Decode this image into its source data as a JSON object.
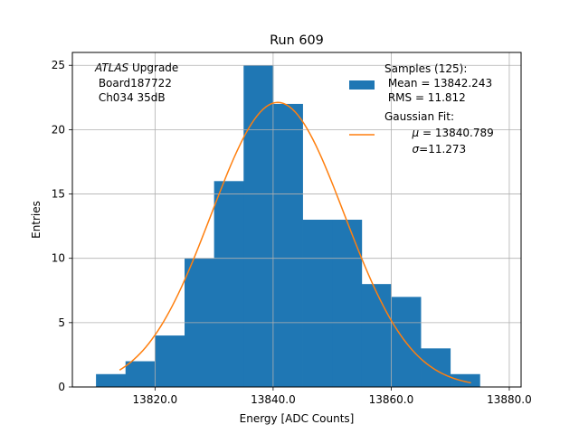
{
  "chart_data": {
    "type": "bar",
    "title": "Run 609",
    "xlabel": "Energy [ADC Counts]",
    "ylabel": "Entries",
    "xlim": [
      13806,
      13882
    ],
    "ylim": [
      0,
      26
    ],
    "grid": true,
    "x_ticks": [
      13820,
      13840,
      13860,
      13880
    ],
    "x_tick_labels": [
      "13820.0",
      "13840.0",
      "13860.0",
      "13880.0"
    ],
    "y_ticks": [
      0,
      5,
      10,
      15,
      20,
      25
    ],
    "y_tick_labels": [
      "0",
      "5",
      "10",
      "15",
      "20",
      "25"
    ],
    "bin_edges": [
      13810,
      13815,
      13820,
      13825,
      13830,
      13835,
      13840,
      13845,
      13850,
      13855,
      13860,
      13865,
      13870,
      13875
    ],
    "counts": [
      1,
      2,
      4,
      10,
      16,
      25,
      22,
      13,
      13,
      8,
      7,
      3,
      1
    ],
    "gaussian_fit": {
      "mu": 13840.789,
      "sigma": 11.273,
      "x_range": [
        13814,
        13873.5
      ]
    },
    "annotation": {
      "italic": "ATLAS",
      "line1_rest": " Upgrade",
      "line2": " Board187722",
      "line3": " Ch034 35dB"
    },
    "legend": {
      "placement": "upper right",
      "hist": {
        "line1": "Samples (125):",
        "line2": " Mean = 13842.243",
        "line3": " RMS = 11.812"
      },
      "fit": {
        "line1": "Gaussian Fit:",
        "mu_sym": "μ",
        "mu_text": " = 13840.789",
        "sigma_sym": "σ",
        "sigma_text": "=11.273"
      }
    },
    "colors": {
      "hist": "#1f77b4",
      "fit": "#ff7f0e",
      "grid": "#b0b0b0"
    }
  }
}
